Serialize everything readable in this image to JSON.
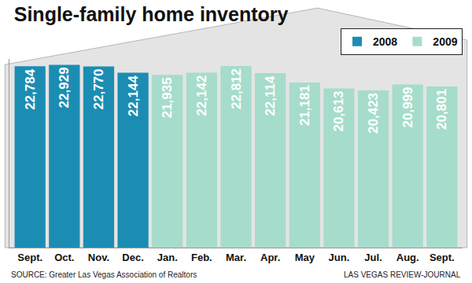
{
  "chart_data": {
    "type": "bar",
    "title": "Single-family home inventory",
    "categories": [
      "Sept.",
      "Oct.",
      "Nov.",
      "Dec.",
      "Jan.",
      "Feb.",
      "Mar.",
      "Apr.",
      "May",
      "Jun.",
      "Jul.",
      "Aug.",
      "Sept."
    ],
    "series": [
      {
        "name": "2008",
        "color": "#1b8db3",
        "values": [
          22784,
          22929,
          22770,
          22144,
          null,
          null,
          null,
          null,
          null,
          null,
          null,
          null,
          null
        ],
        "value_labels": [
          "22,784",
          "22,929",
          "22,770",
          "22,144",
          null,
          null,
          null,
          null,
          null,
          null,
          null,
          null,
          null
        ]
      },
      {
        "name": "2009",
        "color": "#a6dccb",
        "values": [
          null,
          null,
          null,
          null,
          21935,
          22142,
          22812,
          22114,
          21181,
          20613,
          20423,
          20999,
          20801
        ],
        "value_labels": [
          null,
          null,
          null,
          null,
          "21,935",
          "22,142",
          "22,812",
          "22,114",
          "21,181",
          "20,613",
          "20,423",
          "20,999",
          "20,801"
        ]
      }
    ],
    "ylim": [
      5000,
      23500
    ],
    "tick_labels": "x",
    "data_labels": true,
    "grid": false,
    "legend": "top right",
    "annotations": [
      "SOURCE: Greater Las Vegas Association of Realtors",
      "LAS VEGAS REVIEW-JOURNAL"
    ]
  }
}
